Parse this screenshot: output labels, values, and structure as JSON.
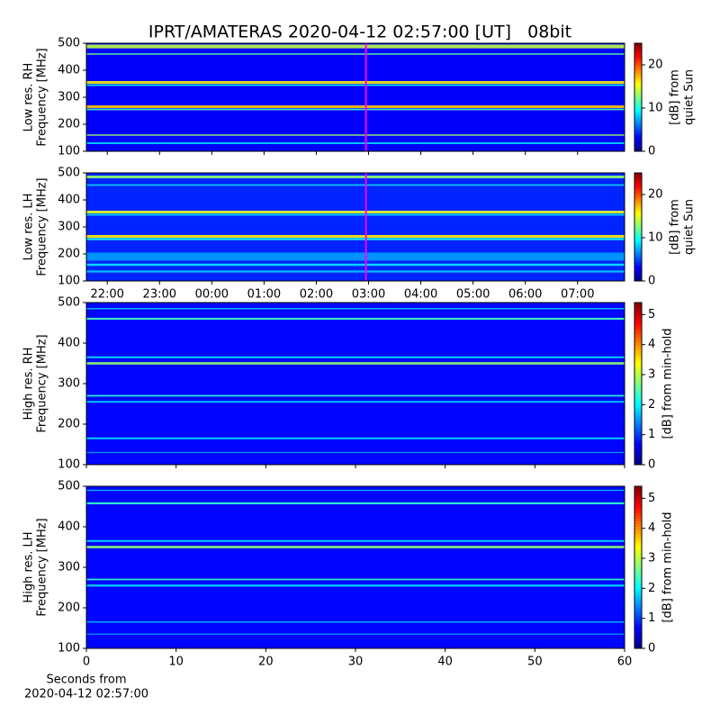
{
  "chart_data": [
    {
      "type": "heatmap",
      "title": "IPRT/AMATERAS 2020-04-12 02:57:00 [UT]   08bit",
      "ylabel": [
        "Low res. RH",
        "Frequency [MHz]"
      ],
      "ylim": [
        100,
        500
      ],
      "yticks": [
        100,
        200,
        300,
        400,
        500
      ],
      "xlim": [
        21.6,
        31.9
      ],
      "xticks": [
        22,
        23,
        24,
        25,
        26,
        27,
        28,
        29,
        30,
        31
      ],
      "xtick_labels": false,
      "clim": [
        0,
        25
      ],
      "cticks": [
        0,
        10,
        20
      ],
      "clabel": [
        "[dB] from",
        "quiet Sun"
      ],
      "background_level": 3,
      "vline": 26.95,
      "vline_color": "#ff00ff",
      "bands": {
        "freq": [
          488,
          460,
          355,
          345,
          265,
          255,
          160,
          130
        ],
        "width": [
          14,
          5,
          10,
          6,
          10,
          6,
          5,
          6
        ],
        "level": [
          14,
          12,
          16,
          10,
          17,
          11,
          13,
          9
        ]
      }
    },
    {
      "type": "heatmap",
      "ylabel": [
        "Low res. LH",
        "Frequency [MHz]"
      ],
      "ylim": [
        100,
        500
      ],
      "yticks": [
        100,
        200,
        300,
        400,
        500
      ],
      "xlim": [
        21.6,
        31.9
      ],
      "xticks": [
        {
          "value": 22,
          "label": "22:00"
        },
        {
          "value": 23,
          "label": "23:00"
        },
        {
          "value": 24,
          "label": "00:00"
        },
        {
          "value": 25,
          "label": "01:00"
        },
        {
          "value": 26,
          "label": "02:00"
        },
        {
          "value": 27,
          "label": "03:00"
        },
        {
          "value": 28,
          "label": "04:00"
        },
        {
          "value": 29,
          "label": "05:00"
        },
        {
          "value": 30,
          "label": "06:00"
        },
        {
          "value": 31,
          "label": "07:00"
        }
      ],
      "xtick_labels": true,
      "clim": [
        0,
        25
      ],
      "cticks": [
        0,
        10,
        20
      ],
      "clabel": [
        "[dB] from",
        "quiet Sun"
      ],
      "background_level": 4,
      "vline": 26.95,
      "vline_color": "#ff00ff",
      "bands": {
        "freq": [
          485,
          455,
          355,
          345,
          265,
          255,
          190,
          160,
          135
        ],
        "width": [
          10,
          5,
          10,
          6,
          10,
          8,
          30,
          8,
          8
        ],
        "level": [
          13,
          9,
          15,
          9,
          16,
          10,
          7,
          9,
          8
        ]
      }
    },
    {
      "type": "heatmap",
      "ylabel": [
        "High res. RH",
        "Frequency [MHz]"
      ],
      "ylim": [
        100,
        500
      ],
      "yticks": [
        100,
        200,
        300,
        400,
        500
      ],
      "xlim": [
        0,
        60
      ],
      "xticks": [
        0,
        10,
        20,
        30,
        40,
        50,
        60
      ],
      "xtick_labels": false,
      "clim": [
        0,
        5.4
      ],
      "cticks": [
        0,
        1,
        2,
        3,
        4,
        5
      ],
      "clabel": [
        "[dB] from min-hold"
      ],
      "background_level": 0.7,
      "bands": {
        "freq": [
          485,
          460,
          365,
          350,
          270,
          255,
          165,
          130
        ],
        "width": [
          3,
          5,
          4,
          6,
          4,
          4,
          4,
          3
        ],
        "level": [
          1.8,
          2.4,
          2.0,
          2.8,
          2.3,
          1.9,
          2.0,
          1.5
        ]
      }
    },
    {
      "type": "heatmap",
      "ylabel": [
        "High res. LH",
        "Frequency [MHz]"
      ],
      "ylim": [
        100,
        500
      ],
      "yticks": [
        100,
        200,
        300,
        400,
        500
      ],
      "xlim": [
        0,
        60
      ],
      "xticks": [
        0,
        10,
        20,
        30,
        40,
        50,
        60
      ],
      "xtick_labels": true,
      "xlabel": [
        "Seconds from",
        "2020-04-12 02:57:00"
      ],
      "clim": [
        0,
        5.4
      ],
      "cticks": [
        0,
        1,
        2,
        3,
        4,
        5
      ],
      "clabel": [
        "[dB] from min-hold"
      ],
      "background_level": 0.7,
      "bands": {
        "freq": [
          490,
          458,
          365,
          350,
          270,
          255,
          165,
          135
        ],
        "width": [
          3,
          5,
          4,
          6,
          4,
          5,
          3,
          3
        ],
        "level": [
          1.7,
          2.3,
          2.0,
          2.8,
          2.3,
          1.9,
          1.8,
          1.5
        ]
      }
    }
  ]
}
